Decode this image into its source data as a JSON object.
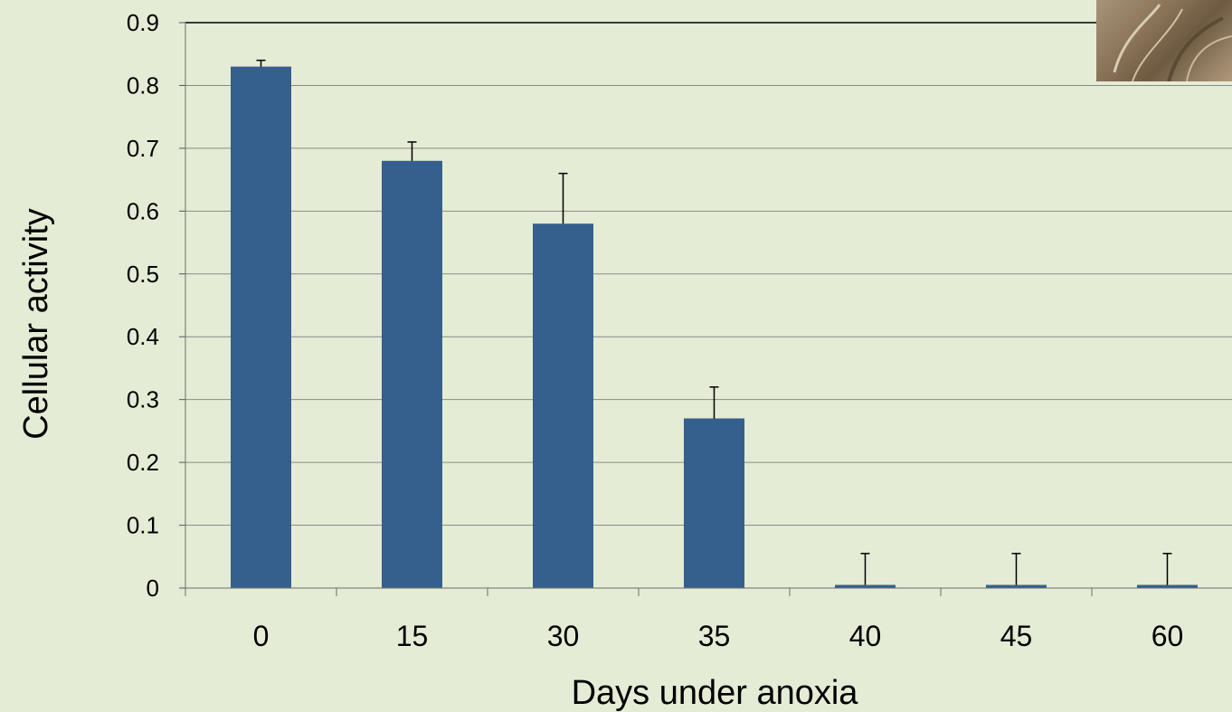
{
  "chart_data": {
    "type": "bar",
    "categories": [
      "0",
      "15",
      "30",
      "35",
      "40",
      "45",
      "60"
    ],
    "values": [
      0.83,
      0.68,
      0.58,
      0.27,
      0.005,
      0.005,
      0.005
    ],
    "error_bars": [
      0.01,
      0.03,
      0.08,
      0.05,
      0.05,
      0.05,
      0.05
    ],
    "yticks": [
      "0",
      "0.1",
      "0.2",
      "0.3",
      "0.4",
      "0.5",
      "0.6",
      "0.7",
      "0.8",
      "0.9"
    ],
    "ylim": [
      0,
      0.9
    ],
    "xlabel": "Days under anoxia",
    "ylabel": "Cellular activity",
    "grid": true,
    "bar_color": "#355f8d",
    "grid_color": "#8a8a8a"
  },
  "photo_icon": "plant-photo"
}
